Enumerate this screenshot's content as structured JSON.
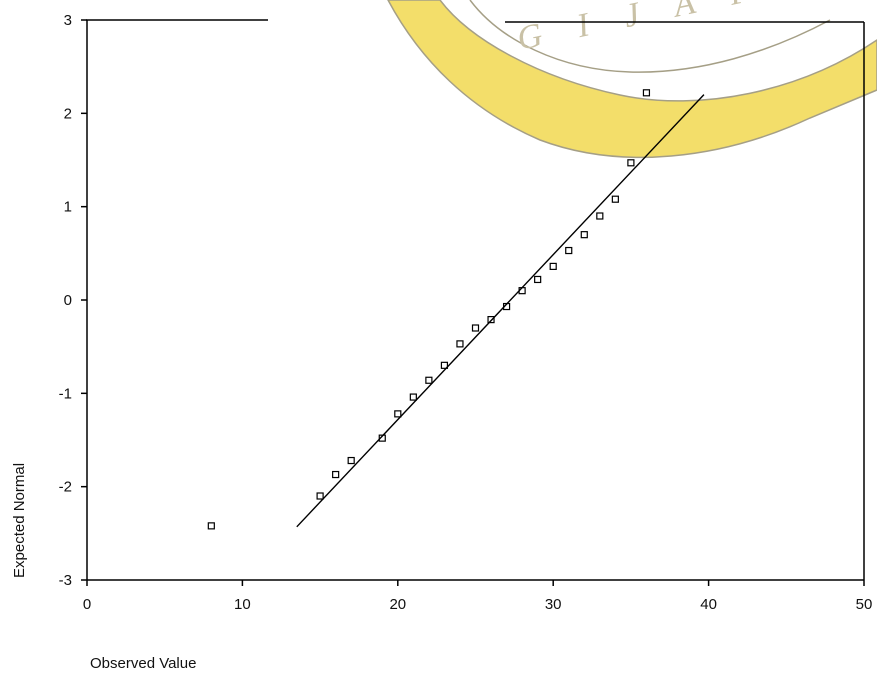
{
  "chart_data": {
    "type": "scatter",
    "title": "",
    "xlabel": "Observed Value",
    "ylabel": "Expected Normal",
    "xlim": [
      0,
      50
    ],
    "ylim": [
      -3,
      3
    ],
    "x_ticks": [
      "0",
      "10",
      "20",
      "30",
      "40",
      "50"
    ],
    "y_ticks": [
      "3",
      "2",
      "1",
      "0",
      "-1",
      "-2",
      "-3"
    ],
    "grid": false,
    "series": [
      {
        "marker": "open-square",
        "points": [
          [
            8,
            -2.42
          ],
          [
            15,
            -2.1
          ],
          [
            16,
            -1.87
          ],
          [
            17,
            -1.72
          ],
          [
            19,
            -1.48
          ],
          [
            20,
            -1.22
          ],
          [
            21,
            -1.04
          ],
          [
            22,
            -0.86
          ],
          [
            23,
            -0.7
          ],
          [
            24,
            -0.47
          ],
          [
            25,
            -0.3
          ],
          [
            26,
            -0.21
          ],
          [
            27,
            -0.07
          ],
          [
            28,
            0.1
          ],
          [
            29,
            0.22
          ],
          [
            30,
            0.36
          ],
          [
            31,
            0.53
          ],
          [
            32,
            0.7
          ],
          [
            33,
            0.9
          ],
          [
            34,
            1.08
          ],
          [
            35,
            1.47
          ],
          [
            36,
            2.22
          ]
        ]
      }
    ],
    "reference_line": {
      "x": [
        13.5,
        39.7
      ],
      "y": [
        -2.43,
        2.2
      ]
    }
  },
  "watermark": {
    "letters": "GIJAPRAN",
    "colors": {
      "fill": "#f3de6a",
      "stroke": "#a59f86"
    }
  }
}
